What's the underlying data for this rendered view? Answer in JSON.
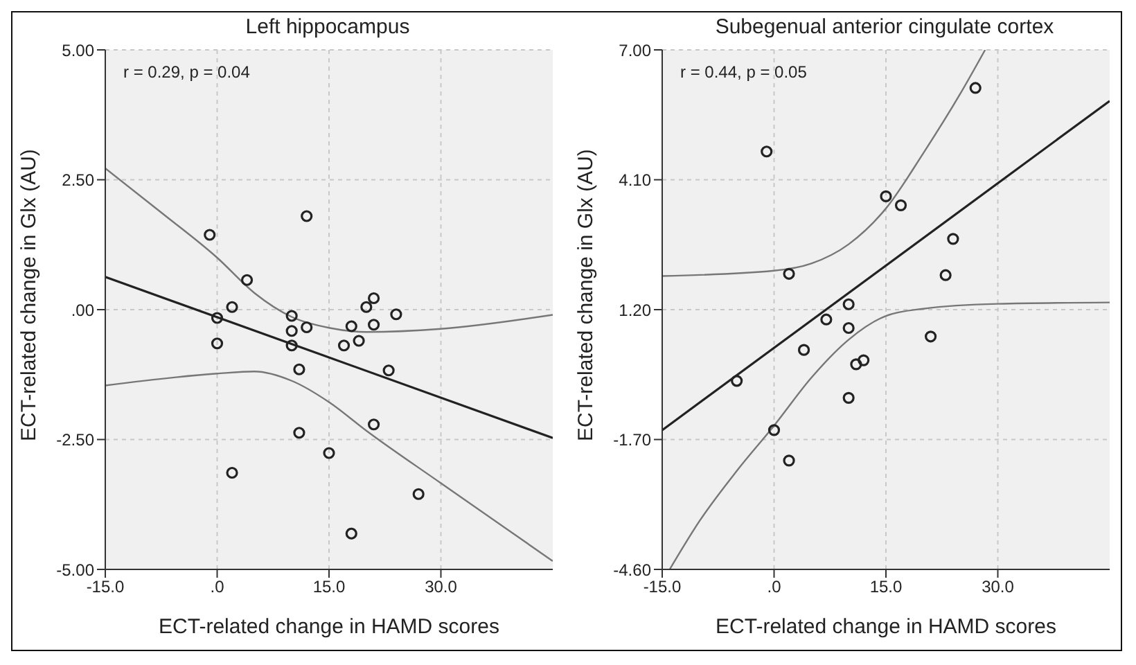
{
  "chart_data": [
    {
      "type": "scatter",
      "title": "Left hippocampus",
      "xlabel": "ECT-related change in HAMD scores",
      "ylabel": "ECT-related change in Glx (AU)",
      "annotations": [
        "r = 0.29, p = 0.04"
      ],
      "xlim": [
        -15,
        45
      ],
      "xticks": [
        {
          "value": -15,
          "label": "-15.0"
        },
        {
          "value": 0,
          "label": ".0"
        },
        {
          "value": 15,
          "label": "15.0"
        },
        {
          "value": 30,
          "label": "30.0"
        }
      ],
      "ylim": [
        -5,
        5
      ],
      "yticks": [
        {
          "value": -5,
          "label": "-5.00"
        },
        {
          "value": -2.5,
          "label": "-2.50"
        },
        {
          "value": 0,
          "label": ".00"
        },
        {
          "value": 2.5,
          "label": "2.50"
        },
        {
          "value": 5,
          "label": "5.00"
        }
      ],
      "grid": true,
      "series": [
        {
          "marker": "circle",
          "color": "#222222",
          "x": [
            -1,
            12,
            4,
            2,
            0,
            0,
            10,
            10,
            10,
            12,
            11,
            11,
            15,
            2,
            18,
            17,
            19,
            20,
            21,
            21,
            24,
            23,
            21,
            18,
            27
          ],
          "values": [
            1.44,
            1.8,
            0.57,
            0.05,
            -0.16,
            -0.65,
            -0.12,
            -0.41,
            -0.69,
            -0.34,
            -1.15,
            -2.37,
            -2.76,
            -3.14,
            -0.32,
            -0.69,
            -0.6,
            0.05,
            0.22,
            -0.29,
            -0.09,
            -1.17,
            -2.21,
            -4.31,
            -3.55
          ]
        },
        {
          "type": "line",
          "color": "#222222",
          "x": [
            -15,
            45
          ],
          "values": [
            0.63,
            -2.47
          ]
        },
        {
          "type": "line",
          "color": "#777777",
          "x": [
            -15,
            -7.5,
            0,
            5,
            10,
            15,
            20,
            30,
            45
          ],
          "values": [
            2.72,
            1.87,
            1.0,
            0.32,
            -0.14,
            -0.35,
            -0.43,
            -0.37,
            -0.1
          ]
        },
        {
          "type": "line",
          "color": "#777777",
          "x": [
            -15,
            0,
            5,
            10,
            15,
            20,
            30,
            45
          ],
          "values": [
            -1.46,
            -1.23,
            -1.19,
            -1.37,
            -1.78,
            -2.33,
            -3.34,
            -4.84
          ]
        }
      ]
    },
    {
      "type": "scatter",
      "title": "Subegenual anterior cingulate cortex",
      "xlabel": "ECT-related change in HAMD scores",
      "ylabel": "ECT-related change in Glx (AU)",
      "annotations": [
        "r = 0.44, p = 0.05"
      ],
      "xlim": [
        -15,
        45
      ],
      "xticks": [
        {
          "value": -15,
          "label": "-15.0"
        },
        {
          "value": 0,
          "label": ".0"
        },
        {
          "value": 15,
          "label": "15.0"
        },
        {
          "value": 30,
          "label": "30.0"
        }
      ],
      "ylim": [
        -4.6,
        7
      ],
      "yticks": [
        {
          "value": -4.6,
          "label": "-4.60"
        },
        {
          "value": -1.7,
          "label": "-1.70"
        },
        {
          "value": 1.2,
          "label": "1.20"
        },
        {
          "value": 4.1,
          "label": "4.10"
        },
        {
          "value": 7,
          "label": "7.00"
        }
      ],
      "grid": true,
      "series": [
        {
          "marker": "circle",
          "color": "#222222",
          "x": [
            -1,
            2,
            -5,
            0,
            2,
            4,
            7,
            10,
            10,
            10,
            11,
            12,
            15,
            17,
            21,
            23,
            24,
            27
          ],
          "values": [
            4.73,
            2.0,
            -0.39,
            -1.49,
            -2.17,
            0.3,
            0.98,
            1.32,
            0.79,
            -0.77,
            -0.02,
            0.07,
            3.73,
            3.53,
            0.6,
            1.97,
            2.78,
            6.15
          ]
        },
        {
          "type": "line",
          "color": "#222222",
          "x": [
            -15,
            45
          ],
          "values": [
            -1.49,
            5.86
          ]
        },
        {
          "type": "line",
          "color": "#777777",
          "x": [
            -15,
            0,
            5,
            10,
            15,
            20,
            25,
            28.3
          ],
          "values": [
            1.95,
            2.07,
            2.23,
            2.66,
            3.46,
            4.69,
            6.03,
            7.0
          ]
        },
        {
          "type": "line",
          "color": "#777777",
          "x": [
            -14,
            -10,
            -5,
            0,
            5,
            10,
            15,
            20,
            30,
            45
          ],
          "values": [
            -4.6,
            -3.52,
            -2.4,
            -1.39,
            -0.32,
            0.53,
            1.06,
            1.22,
            1.33,
            1.36
          ]
        }
      ]
    }
  ]
}
